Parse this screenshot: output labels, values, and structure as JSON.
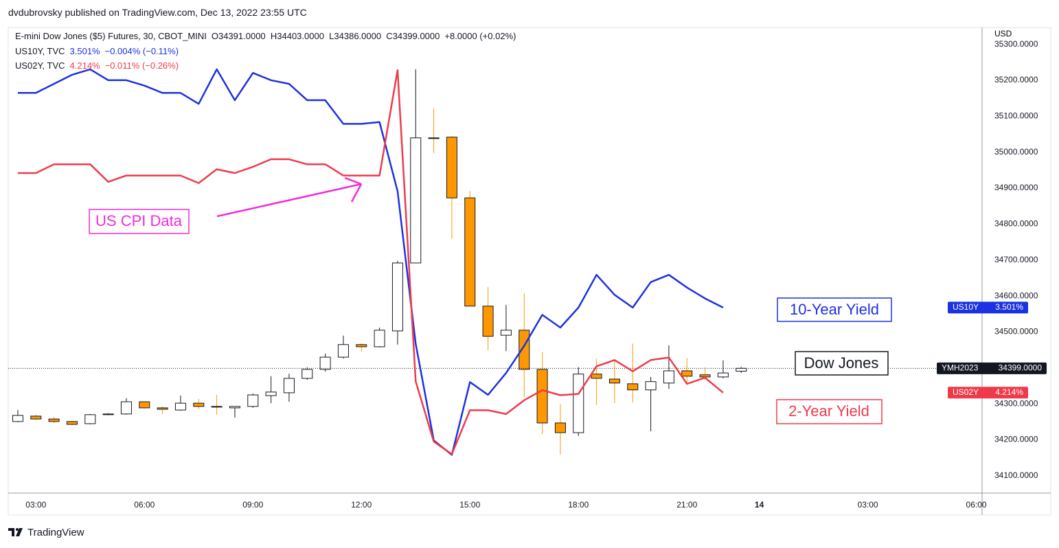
{
  "header": {
    "publisher": "dvdubrovsky published on TradingView.com, Dec 13, 2022 23:55 UTC"
  },
  "footer": {
    "brand": "TradingView"
  },
  "chart_data": {
    "type": "candlestick",
    "ylabel": "USD",
    "legend": {
      "name": "E-mini Dow Jones ($5) Futures, 30, CBOT_MINI",
      "ohlc": "O34391.0000  H34403.0000  L34386.0000  C34399.0000",
      "change": "+8.0000 (+0.02%)"
    },
    "ohlc": {
      "tag": "YMH2023",
      "last_label": "34399.0000",
      "up_color": "#ffffff",
      "down_color": "#ff9800",
      "open": [
        34251,
        34266,
        34258,
        34251,
        34245,
        34272,
        34272,
        34306,
        34289,
        34283,
        34302,
        34293,
        34289,
        34293,
        34323,
        34331,
        34371,
        34396,
        34430,
        34465,
        34459,
        34503,
        34692,
        35040,
        35042,
        34873,
        34572,
        34491,
        34505,
        34396,
        34247,
        34220,
        34383,
        34369,
        34356,
        34339,
        34358,
        34392,
        34381,
        34375,
        34391
      ],
      "high": [
        34283,
        34270,
        34264,
        34253,
        34272,
        34276,
        34316,
        34306,
        34293,
        34323,
        34314,
        34325,
        34293,
        34329,
        34377,
        34384,
        34402,
        34440,
        34490,
        34468,
        34512,
        34698,
        35231,
        35122,
        35045,
        34892,
        34625,
        34575,
        34608,
        34444,
        34300,
        34402,
        34425,
        34421,
        34468,
        34375,
        34463,
        34427,
        34402,
        34421,
        34403
      ],
      "low": [
        34249,
        34255,
        34247,
        34241,
        34243,
        34268,
        34270,
        34287,
        34272,
        34281,
        34285,
        34270,
        34262,
        34289,
        34302,
        34306,
        34367,
        34390,
        34426,
        34444,
        34457,
        34465,
        34692,
        34998,
        34759,
        34572,
        34449,
        34447,
        34319,
        34216,
        34159,
        34211,
        34297,
        34302,
        34304,
        34224,
        34342,
        34356,
        34367,
        34371,
        34386
      ],
      "close": [
        34268,
        34258,
        34251,
        34243,
        34270,
        34270,
        34306,
        34289,
        34285,
        34302,
        34293,
        34291,
        34293,
        34325,
        34333,
        34371,
        34396,
        34430,
        34465,
        34459,
        34505,
        34692,
        35040,
        35038,
        34873,
        34572,
        34488,
        34505,
        34396,
        34247,
        34220,
        34383,
        34371,
        34358,
        34339,
        34362,
        34392,
        34377,
        34375,
        34386,
        34399
      ]
    },
    "series": [
      {
        "name": "US10Y, TVC",
        "tag": "US10Y",
        "color": "#1c31e0",
        "last_label": "3.501%",
        "change_label": "−0.004% (−0.11%)",
        "ylim": [
          3.399,
          3.655
        ],
        "values": [
          3.619,
          3.619,
          3.624,
          3.629,
          3.632,
          3.626,
          3.626,
          3.623,
          3.619,
          3.619,
          3.613,
          3.632,
          3.615,
          3.63,
          3.626,
          3.624,
          3.615,
          3.615,
          3.602,
          3.602,
          3.603,
          3.565,
          3.481,
          3.428,
          3.42,
          3.46,
          3.453,
          3.465,
          3.48,
          3.497,
          3.49,
          3.501,
          3.519,
          3.508,
          3.501,
          3.515,
          3.519,
          3.512,
          3.506,
          3.501
        ]
      },
      {
        "name": "US02Y, TVC",
        "tag": "US02Y",
        "color": "#ef3a4a",
        "last_label": "4.214%",
        "change_label": "−0.011% (−0.26%)",
        "ylim": [
          4.134,
          4.505
        ],
        "values": [
          4.389,
          4.389,
          4.396,
          4.396,
          4.396,
          4.382,
          4.387,
          4.387,
          4.387,
          4.387,
          4.381,
          4.392,
          4.389,
          4.394,
          4.4,
          4.4,
          4.396,
          4.396,
          4.387,
          4.387,
          4.387,
          4.471,
          4.223,
          4.175,
          4.165,
          4.2,
          4.2,
          4.197,
          4.208,
          4.216,
          4.212,
          4.213,
          4.235,
          4.24,
          4.231,
          4.24,
          4.242,
          4.221,
          4.226,
          4.214
        ]
      }
    ],
    "annotations": [
      "US CPI Data",
      "10-Year Yield",
      "Dow Jones",
      "2-Year Yield"
    ],
    "xlim": [
      -0.53,
      53.32
    ],
    "xticks": [
      {
        "value": 1,
        "label": "03:00"
      },
      {
        "value": 7,
        "label": "06:00"
      },
      {
        "value": 13,
        "label": "09:00"
      },
      {
        "value": 19,
        "label": "12:00"
      },
      {
        "value": 25,
        "label": "15:00"
      },
      {
        "value": 31,
        "label": "18:00"
      },
      {
        "value": 37,
        "label": "21:00"
      },
      {
        "value": 41,
        "label": "14"
      },
      {
        "value": 47,
        "label": "03:00"
      },
      {
        "value": 53,
        "label": "06:00"
      }
    ],
    "ylim": [
      34052,
      35347
    ],
    "yticks": [
      {
        "value": 34100,
        "label": "34100.0000"
      },
      {
        "value": 34200,
        "label": "34200.0000"
      },
      {
        "value": 34300,
        "label": "34300.0000"
      },
      {
        "value": 34400,
        "label": "34400.0000"
      },
      {
        "value": 34500,
        "label": "34500.0000"
      },
      {
        "value": 34600,
        "label": "34600.0000"
      },
      {
        "value": 34700,
        "label": "34700.0000"
      },
      {
        "value": 34800,
        "label": "34800.0000"
      },
      {
        "value": 34900,
        "label": "34900.0000"
      },
      {
        "value": 35000,
        "label": "35000.0000"
      },
      {
        "value": 35100,
        "label": "35100.0000"
      },
      {
        "value": 35200,
        "label": "35200.0000"
      },
      {
        "value": 35300,
        "label": "35300.0000"
      }
    ],
    "grid": false
  }
}
